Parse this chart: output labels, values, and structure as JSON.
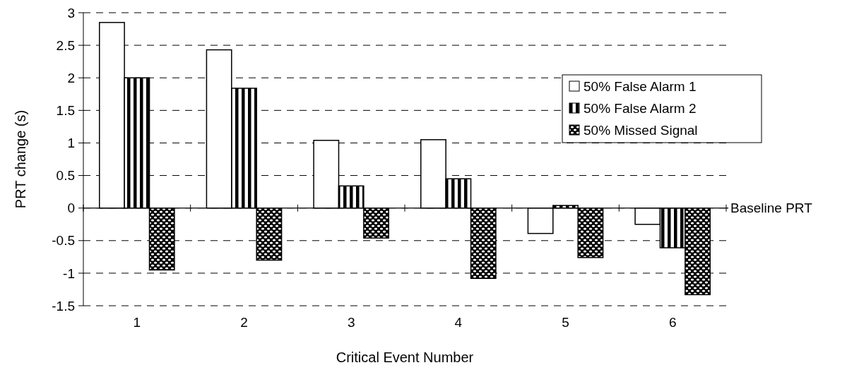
{
  "chart_data": {
    "type": "bar",
    "xlabel": "Critical Event Number",
    "ylabel": "PRT change (s)",
    "categories": [
      "1",
      "2",
      "3",
      "4",
      "5",
      "6"
    ],
    "series": [
      {
        "name": "50% False Alarm 1",
        "color": "#ffffff",
        "values": [
          2.85,
          2.43,
          1.04,
          1.05,
          -0.39,
          -0.25
        ]
      },
      {
        "name": "50% False Alarm 2",
        "color": "#000000",
        "values": [
          2.0,
          1.84,
          0.34,
          0.45,
          0.04,
          -0.61
        ]
      },
      {
        "name": "50% Missed Signal",
        "color": "#000000",
        "values": [
          -0.95,
          -0.8,
          -0.46,
          -1.08,
          -0.76,
          -1.33
        ]
      }
    ],
    "ylim": [
      -1.5,
      3
    ],
    "yticks": [
      3,
      2.5,
      2,
      1.5,
      1,
      0.5,
      0,
      -0.5,
      -1,
      -1.5
    ],
    "grid": "y",
    "legend": "right",
    "ref_lines": [
      {
        "axis": "y",
        "value": 0,
        "label": "Baseline PRT"
      }
    ]
  }
}
